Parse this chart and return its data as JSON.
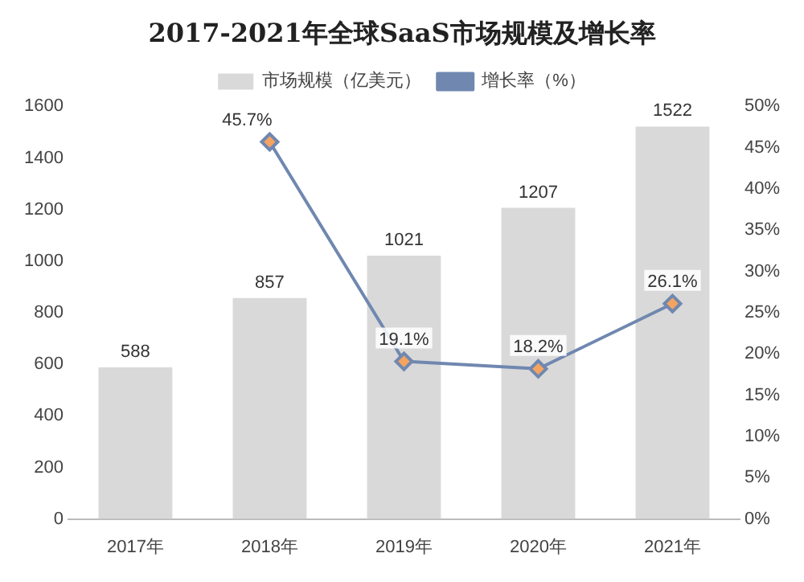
{
  "chart_data": {
    "type": "bar",
    "title": "2017-2021年全球SaaS市场规模及增长率",
    "categories": [
      "2017年",
      "2018年",
      "2019年",
      "2020年",
      "2021年"
    ],
    "series": [
      {
        "name": "市场规模（亿美元）",
        "color": "#d9d9d9",
        "values": [
          588,
          857,
          1021,
          1207,
          1522
        ],
        "value_labels": [
          "588",
          "857",
          "1021",
          "1207",
          "1522"
        ]
      },
      {
        "name": "增长率（%）",
        "type": "line",
        "axis": "y2",
        "color": "#7088b0",
        "marker": "diamond",
        "values": [
          null,
          45.7,
          19.1,
          18.2,
          26.1
        ],
        "value_labels": [
          null,
          "45.7%",
          "19.1%",
          "18.2%",
          "26.1%"
        ]
      }
    ],
    "ylim": [
      0,
      1600
    ],
    "yticks": [
      0,
      200,
      400,
      600,
      800,
      1000,
      1200,
      1400,
      1600
    ],
    "y2lim": [
      0,
      50
    ],
    "y2ticks": [
      {
        "value": 0,
        "label": "0%"
      },
      {
        "value": 5,
        "label": "5%"
      },
      {
        "value": 10,
        "label": "10%"
      },
      {
        "value": 15,
        "label": "15%"
      },
      {
        "value": 20,
        "label": "20%"
      },
      {
        "value": 25,
        "label": "25%"
      },
      {
        "value": 30,
        "label": "30%"
      },
      {
        "value": 35,
        "label": "35%"
      },
      {
        "value": 40,
        "label": "40%"
      },
      {
        "value": 45,
        "label": "45%"
      },
      {
        "value": 50,
        "label": "50%"
      }
    ],
    "legend": "top",
    "grid": false
  }
}
